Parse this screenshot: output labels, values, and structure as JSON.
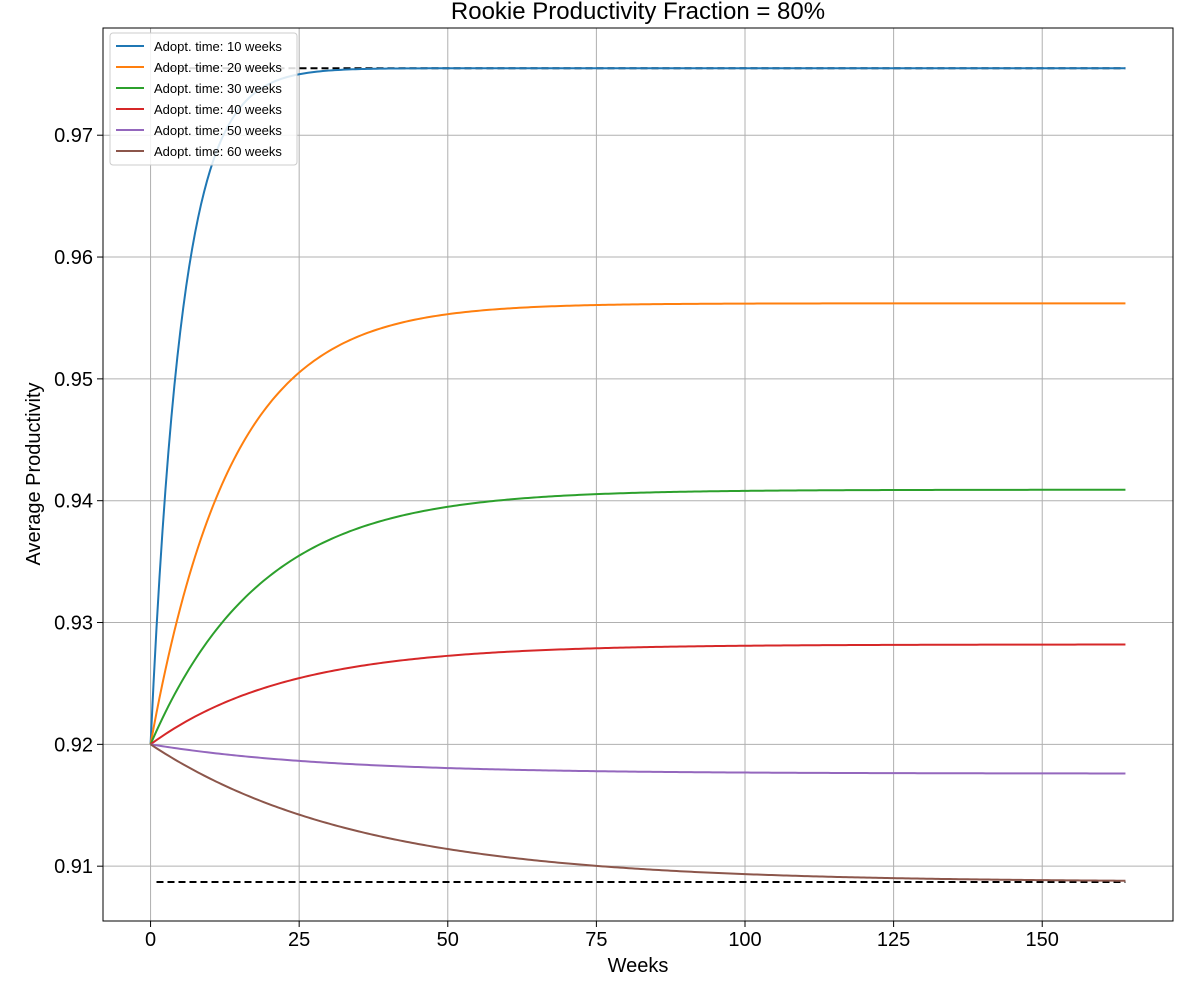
{
  "chart_data": {
    "type": "line",
    "title": "Rookie Productivity Fraction = 80%",
    "xlabel": "Weeks",
    "ylabel": "Average Productivity",
    "xlim": [
      -8,
      172
    ],
    "ylim": [
      0.9055,
      0.9788
    ],
    "xticks": [
      0,
      25,
      50,
      75,
      100,
      125,
      150
    ],
    "yticks": [
      0.91,
      0.92,
      0.93,
      0.94,
      0.95,
      0.96,
      0.97
    ],
    "ytick_labels": [
      "0.91",
      "0.92",
      "0.93",
      "0.94",
      "0.95",
      "0.96",
      "0.97"
    ],
    "grid": true,
    "legend_position": "top-left",
    "series": [
      {
        "name": "Adopt. time: 10 weeks",
        "color": "#1f77b4",
        "start": 0.92,
        "end": 0.9755,
        "tau": 5.3
      },
      {
        "name": "Adopt. time: 20 weeks",
        "color": "#ff7f0e",
        "start": 0.92,
        "end": 0.9562,
        "tau": 13.5
      },
      {
        "name": "Adopt. time: 30 weeks",
        "color": "#2ca02c",
        "start": 0.92,
        "end": 0.9409,
        "tau": 18.5
      },
      {
        "name": "Adopt. time: 40 weeks",
        "color": "#d62728",
        "start": 0.92,
        "end": 0.9282,
        "tau": 23
      },
      {
        "name": "Adopt. time: 50 weeks",
        "color": "#9467bd",
        "start": 0.92,
        "end": 0.9176,
        "tau": 30
      },
      {
        "name": "Adopt. time: 60 weeks",
        "color": "#8c564b",
        "start": 0.92,
        "end": 0.9087,
        "tau": 35
      }
    ],
    "x_max": 164,
    "reference_lines": [
      {
        "y": 0.9755,
        "x": [
          1,
          164
        ],
        "style": "dashed",
        "color": "#000000"
      },
      {
        "y": 0.9087,
        "x": [
          1,
          164
        ],
        "style": "dashed",
        "color": "#000000"
      }
    ]
  }
}
